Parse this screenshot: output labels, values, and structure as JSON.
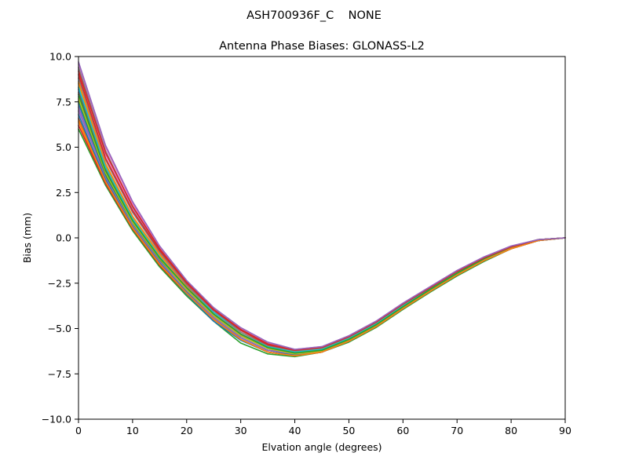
{
  "chart_data": {
    "type": "line",
    "suptitle": "ASH700936F_C    NONE",
    "title": "Antenna Phase Biases: GLONASS-L2",
    "xlabel": "Elvation angle (degrees)",
    "ylabel": "Bias (mm)",
    "xlim": [
      0,
      90
    ],
    "ylim": [
      -10,
      10
    ],
    "xticks": [
      0,
      10,
      20,
      30,
      40,
      50,
      60,
      70,
      80,
      90
    ],
    "xtick_labels": [
      "0",
      "10",
      "20",
      "30",
      "40",
      "50",
      "60",
      "70",
      "80",
      "90"
    ],
    "yticks": [
      -10,
      -7.5,
      -5,
      -2.5,
      0,
      2.5,
      5,
      7.5,
      10
    ],
    "ytick_labels": [
      "−10.0",
      "−7.5",
      "−5.0",
      "−2.5",
      "0.0",
      "2.5",
      "5.0",
      "7.5",
      "10.0"
    ],
    "grid": false,
    "legend": "none",
    "x": [
      0,
      5,
      10,
      15,
      20,
      25,
      30,
      35,
      40,
      45,
      50,
      55,
      60,
      65,
      70,
      75,
      80,
      85,
      90
    ],
    "series": [
      {
        "color": "#1f77b4",
        "values": [
          8.2,
          3.7,
          0.9,
          -1.2,
          -2.9,
          -4.4,
          -5.5,
          -6.2,
          -6.45,
          -6.3,
          -5.65,
          -4.85,
          -3.85,
          -2.9,
          -2.0,
          -1.2,
          -0.55,
          -0.15,
          0.0
        ]
      },
      {
        "color": "#ff7f0e",
        "values": [
          6.4,
          3.0,
          0.5,
          -1.5,
          -3.1,
          -4.5,
          -5.6,
          -6.3,
          -6.5,
          -6.3,
          -5.7,
          -4.9,
          -3.9,
          -2.95,
          -2.05,
          -1.25,
          -0.6,
          -0.15,
          0.0
        ]
      },
      {
        "color": "#2ca02c",
        "values": [
          6.0,
          2.9,
          0.4,
          -1.6,
          -3.2,
          -4.6,
          -5.8,
          -6.4,
          -6.55,
          -6.3,
          -5.75,
          -4.95,
          -3.95,
          -3.0,
          -2.1,
          -1.3,
          -0.6,
          -0.15,
          0.0
        ]
      },
      {
        "color": "#d62728",
        "values": [
          6.2,
          3.0,
          0.5,
          -1.5,
          -3.1,
          -4.5,
          -5.6,
          -6.3,
          -6.5,
          -6.3,
          -5.7,
          -4.9,
          -3.9,
          -2.95,
          -2.05,
          -1.25,
          -0.6,
          -0.15,
          0.0
        ]
      },
      {
        "color": "#9467bd",
        "values": [
          7.0,
          3.4,
          0.8,
          -1.3,
          -2.9,
          -4.3,
          -5.4,
          -6.1,
          -6.35,
          -6.2,
          -5.6,
          -4.8,
          -3.8,
          -2.85,
          -1.95,
          -1.2,
          -0.55,
          -0.15,
          0.0
        ]
      },
      {
        "color": "#8c564b",
        "values": [
          6.6,
          3.2,
          0.6,
          -1.4,
          -3.0,
          -4.4,
          -5.5,
          -6.2,
          -6.4,
          -6.25,
          -5.65,
          -4.85,
          -3.85,
          -2.9,
          -2.0,
          -1.2,
          -0.55,
          -0.15,
          0.0
        ]
      },
      {
        "color": "#e377c2",
        "values": [
          9.3,
          4.6,
          1.6,
          -0.7,
          -2.5,
          -4.0,
          -5.1,
          -5.85,
          -6.2,
          -6.05,
          -5.45,
          -4.65,
          -3.65,
          -2.75,
          -1.85,
          -1.1,
          -0.5,
          -0.1,
          0.0
        ]
      },
      {
        "color": "#7f7f7f",
        "values": [
          8.8,
          4.3,
          1.4,
          -0.8,
          -2.6,
          -4.1,
          -5.2,
          -5.95,
          -6.25,
          -6.1,
          -5.5,
          -4.7,
          -3.7,
          -2.8,
          -1.9,
          -1.15,
          -0.5,
          -0.1,
          0.0
        ]
      },
      {
        "color": "#bcbd22",
        "values": [
          8.5,
          4.0,
          1.1,
          -1.0,
          -2.8,
          -4.2,
          -5.3,
          -6.05,
          -6.3,
          -6.15,
          -5.55,
          -4.75,
          -3.75,
          -2.85,
          -1.95,
          -1.15,
          -0.5,
          -0.1,
          0.0
        ]
      },
      {
        "color": "#17becf",
        "values": [
          7.8,
          3.6,
          0.9,
          -1.1,
          -2.7,
          -4.1,
          -5.1,
          -5.85,
          -6.2,
          -6.05,
          -5.45,
          -4.65,
          -3.65,
          -2.8,
          -1.85,
          -1.1,
          -0.5,
          -0.1,
          0.0
        ]
      },
      {
        "color": "#1f77b4",
        "values": [
          7.4,
          3.4,
          0.7,
          -1.3,
          -3.0,
          -4.5,
          -5.5,
          -6.2,
          -6.45,
          -6.3,
          -5.7,
          -4.9,
          -3.9,
          -2.95,
          -2.05,
          -1.25,
          -0.55,
          -0.15,
          0.0
        ]
      },
      {
        "color": "#ff7f0e",
        "values": [
          8.6,
          4.1,
          1.2,
          -0.9,
          -2.7,
          -4.2,
          -5.3,
          -6.0,
          -6.3,
          -6.15,
          -5.55,
          -4.75,
          -3.75,
          -2.85,
          -1.95,
          -1.15,
          -0.5,
          -0.1,
          0.0
        ]
      },
      {
        "color": "#2ca02c",
        "values": [
          7.6,
          3.5,
          0.8,
          -1.2,
          -2.8,
          -4.3,
          -5.4,
          -6.1,
          -6.4,
          -6.25,
          -5.65,
          -4.85,
          -3.85,
          -2.9,
          -2.0,
          -1.2,
          -0.55,
          -0.15,
          0.0
        ]
      },
      {
        "color": "#d62728",
        "values": [
          9.0,
          4.4,
          1.5,
          -0.7,
          -2.5,
          -4.0,
          -5.1,
          -5.9,
          -6.2,
          -6.05,
          -5.45,
          -4.65,
          -3.65,
          -2.75,
          -1.85,
          -1.1,
          -0.5,
          -0.1,
          0.0
        ]
      },
      {
        "color": "#9467bd",
        "values": [
          7.2,
          3.3,
          0.7,
          -1.3,
          -2.9,
          -4.4,
          -5.5,
          -6.2,
          -6.4,
          -6.25,
          -5.65,
          -4.85,
          -3.85,
          -2.9,
          -2.0,
          -1.2,
          -0.55,
          -0.15,
          0.0
        ]
      },
      {
        "color": "#8c564b",
        "values": [
          8.0,
          3.8,
          1.0,
          -1.1,
          -2.8,
          -4.25,
          -5.35,
          -6.05,
          -6.35,
          -6.2,
          -5.6,
          -4.8,
          -3.8,
          -2.85,
          -1.95,
          -1.15,
          -0.5,
          -0.1,
          0.0
        ]
      },
      {
        "color": "#e377c2",
        "values": [
          9.6,
          5.0,
          1.9,
          -0.5,
          -2.4,
          -3.9,
          -5.0,
          -5.8,
          -6.15,
          -6.0,
          -5.4,
          -4.6,
          -3.6,
          -2.7,
          -1.8,
          -1.05,
          -0.45,
          -0.1,
          0.0
        ]
      },
      {
        "color": "#7f7f7f",
        "values": [
          9.4,
          4.8,
          1.7,
          -0.6,
          -2.45,
          -3.95,
          -5.05,
          -5.85,
          -6.2,
          -6.05,
          -5.45,
          -4.65,
          -3.65,
          -2.75,
          -1.85,
          -1.1,
          -0.5,
          -0.1,
          0.0
        ]
      },
      {
        "color": "#bcbd22",
        "values": [
          7.7,
          3.6,
          0.85,
          -1.15,
          -2.85,
          -4.3,
          -5.4,
          -6.1,
          -6.4,
          -6.25,
          -5.65,
          -4.85,
          -3.85,
          -2.9,
          -2.0,
          -1.2,
          -0.55,
          -0.15,
          0.0
        ]
      },
      {
        "color": "#17becf",
        "values": [
          8.3,
          3.9,
          1.05,
          -1.05,
          -2.75,
          -4.2,
          -5.3,
          -6.0,
          -6.3,
          -6.15,
          -5.55,
          -4.75,
          -3.75,
          -2.85,
          -1.95,
          -1.15,
          -0.5,
          -0.1,
          0.0
        ]
      },
      {
        "color": "#1f77b4",
        "values": [
          6.8,
          3.2,
          0.6,
          -1.4,
          -3.1,
          -4.6,
          -5.65,
          -6.3,
          -6.5,
          -6.3,
          -5.7,
          -4.9,
          -3.9,
          -2.95,
          -2.05,
          -1.25,
          -0.6,
          -0.15,
          0.0
        ]
      },
      {
        "color": "#ff7f0e",
        "values": [
          6.5,
          3.1,
          0.55,
          -1.45,
          -3.05,
          -4.5,
          -5.6,
          -6.3,
          -6.5,
          -6.3,
          -5.7,
          -4.9,
          -3.9,
          -2.95,
          -2.05,
          -1.25,
          -0.6,
          -0.15,
          0.0
        ]
      },
      {
        "color": "#2ca02c",
        "values": [
          7.9,
          3.7,
          0.95,
          -1.1,
          -2.75,
          -4.2,
          -5.3,
          -6.05,
          -6.35,
          -6.2,
          -5.6,
          -4.8,
          -3.8,
          -2.85,
          -1.95,
          -1.15,
          -0.5,
          -0.1,
          0.0
        ]
      },
      {
        "color": "#d62728",
        "values": [
          9.2,
          4.7,
          1.75,
          -0.6,
          -2.45,
          -3.95,
          -5.05,
          -5.85,
          -6.2,
          -6.05,
          -5.45,
          -4.65,
          -3.65,
          -2.75,
          -1.85,
          -1.1,
          -0.5,
          -0.1,
          0.0
        ]
      },
      {
        "color": "#9467bd",
        "values": [
          9.7,
          5.1,
          2.0,
          -0.45,
          -2.35,
          -3.85,
          -4.95,
          -5.75,
          -6.15,
          -6.0,
          -5.4,
          -4.6,
          -3.6,
          -2.7,
          -1.8,
          -1.05,
          -0.45,
          -0.1,
          0.0
        ]
      }
    ]
  }
}
